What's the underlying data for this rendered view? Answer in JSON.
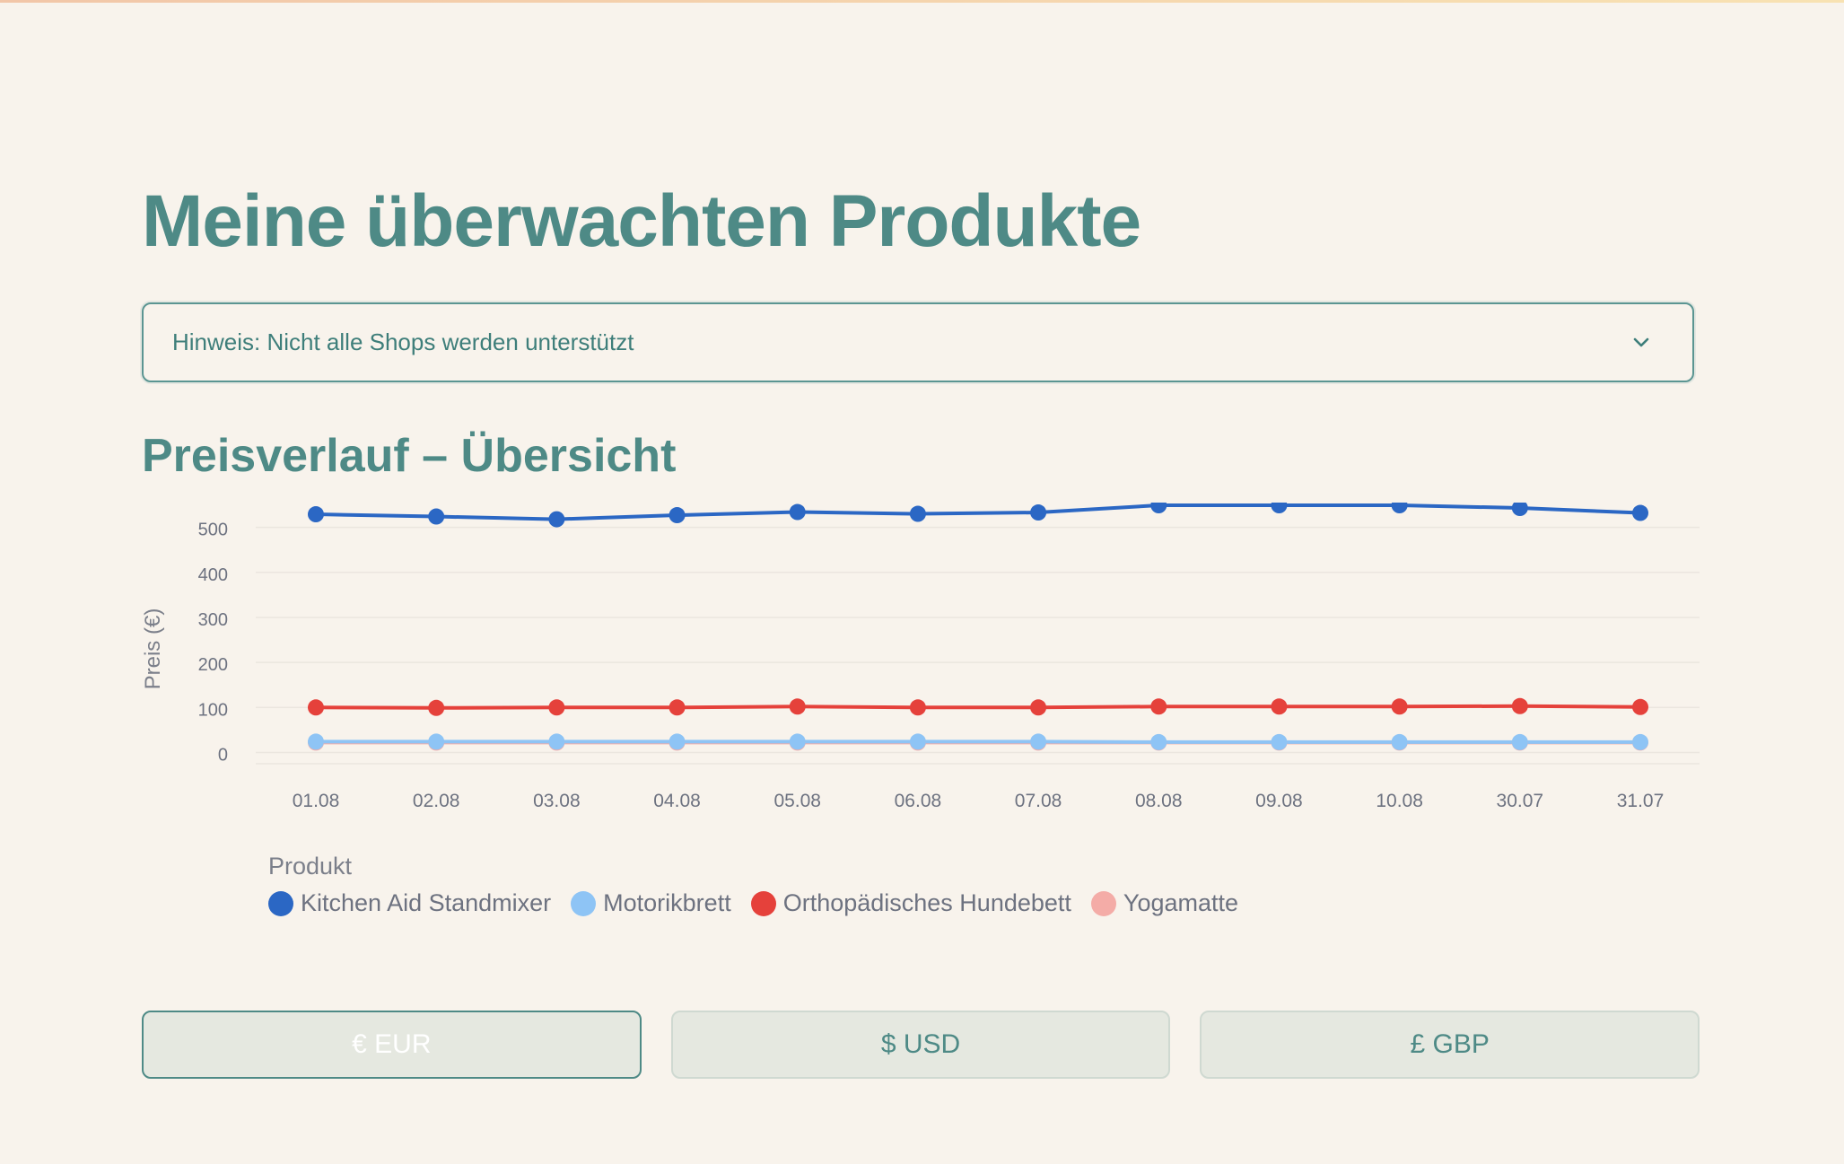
{
  "page": {
    "title": "Meine überwachten Produkte",
    "notice": "Hinweis: Nicht alle Shops werden unterstützt",
    "section_title": "Preisverlauf – Übersicht"
  },
  "chart_data": {
    "type": "line",
    "title": "",
    "xlabel": "",
    "ylabel": "Preis (€)",
    "categories": [
      "01.08",
      "02.08",
      "03.08",
      "04.08",
      "05.08",
      "06.08",
      "07.08",
      "08.08",
      "09.08",
      "10.08",
      "30.07",
      "31.07"
    ],
    "y_ticks": [
      0,
      100,
      200,
      300,
      400,
      500
    ],
    "ylim": [
      -25,
      555
    ],
    "grid": true,
    "legend_title": "Produkt",
    "legend_position": "bottom-left",
    "series": [
      {
        "name": "Kitchen Aid Standmixer",
        "color": "#2b67c4",
        "values": [
          529,
          524,
          518,
          527,
          534,
          530,
          533,
          549,
          549,
          549,
          543,
          532
        ]
      },
      {
        "name": "Motorikbrett",
        "color": "#8ec4f5",
        "values": [
          24,
          24,
          24,
          24,
          24,
          24,
          24,
          23,
          23,
          23,
          23,
          23
        ]
      },
      {
        "name": "Orthopädisches Hundebett",
        "color": "#e5413b",
        "values": [
          100,
          99,
          100,
          100,
          102,
          100,
          100,
          102,
          102,
          102,
          103,
          101
        ]
      },
      {
        "name": "Yogamatte",
        "color": "#f4aca7",
        "values": [
          22,
          22,
          22,
          22,
          22,
          22,
          22,
          22,
          22,
          22,
          22,
          22
        ]
      }
    ]
  },
  "currency": {
    "buttons": [
      {
        "label": "€ EUR",
        "active": true
      },
      {
        "label": "$ USD",
        "active": false
      },
      {
        "label": "£ GBP",
        "active": false
      }
    ]
  }
}
